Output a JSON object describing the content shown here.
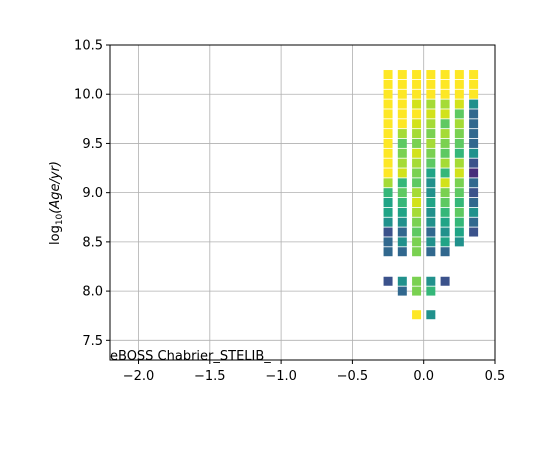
{
  "chart_data": {
    "type": "scatter",
    "title": "",
    "xlabel": "",
    "ylabel_prefix": "log",
    "ylabel_sub": "10",
    "ylabel_rest": "(Age/yr)",
    "xlim": [
      -2.2,
      0.5
    ],
    "ylim": [
      7.3,
      10.5
    ],
    "xticks": [
      -2.0,
      -1.5,
      -1.0,
      -0.5,
      0.0,
      0.5
    ],
    "xtick_labels": [
      "−2.0",
      "−1.5",
      "−1.0",
      "−0.5",
      "0.0",
      "0.5"
    ],
    "yticks": [
      7.5,
      8.0,
      8.5,
      9.0,
      9.5,
      10.0,
      10.5
    ],
    "ytick_labels": [
      "7.5",
      "8.0",
      "8.5",
      "9.0",
      "9.5",
      "10.0",
      "10.5"
    ],
    "grid": true,
    "annotation": "eBOSS Chabrier_STELIB_",
    "palette": {
      "c0": "#3b528b",
      "c1": "#31688e",
      "c2": "#21918c",
      "c3": "#20a486",
      "c4": "#35b779",
      "c5": "#5ec962",
      "c6": "#7ad151",
      "c7": "#a5db36",
      "c8": "#d2e21b",
      "c9": "#fde725",
      "dark": "#472c7a"
    },
    "columns": [
      {
        "x": -0.25,
        "cells": [
          {
            "y": 10.2,
            "c": "c9"
          },
          {
            "y": 10.1,
            "c": "c9"
          },
          {
            "y": 10.0,
            "c": "c9"
          },
          {
            "y": 9.9,
            "c": "c9"
          },
          {
            "y": 9.8,
            "c": "c9"
          },
          {
            "y": 9.7,
            "c": "c9"
          },
          {
            "y": 9.6,
            "c": "c9"
          },
          {
            "y": 9.5,
            "c": "c9"
          },
          {
            "y": 9.4,
            "c": "c9"
          },
          {
            "y": 9.3,
            "c": "c9"
          },
          {
            "y": 9.2,
            "c": "c9"
          },
          {
            "y": 9.1,
            "c": "c7"
          },
          {
            "y": 9.0,
            "c": "c4"
          },
          {
            "y": 8.9,
            "c": "c3"
          },
          {
            "y": 8.8,
            "c": "c3"
          },
          {
            "y": 8.7,
            "c": "c2"
          },
          {
            "y": 8.6,
            "c": "c0"
          },
          {
            "y": 8.5,
            "c": "c1"
          },
          {
            "y": 8.4,
            "c": "c1"
          },
          {
            "y": 8.1,
            "c": "c0"
          }
        ]
      },
      {
        "x": -0.15,
        "cells": [
          {
            "y": 10.2,
            "c": "c9"
          },
          {
            "y": 10.1,
            "c": "c9"
          },
          {
            "y": 10.0,
            "c": "c9"
          },
          {
            "y": 9.9,
            "c": "c9"
          },
          {
            "y": 9.8,
            "c": "c9"
          },
          {
            "y": 9.7,
            "c": "c9"
          },
          {
            "y": 9.6,
            "c": "c7"
          },
          {
            "y": 9.5,
            "c": "c5"
          },
          {
            "y": 9.4,
            "c": "c6"
          },
          {
            "y": 9.3,
            "c": "c7"
          },
          {
            "y": 9.2,
            "c": "c8"
          },
          {
            "y": 9.1,
            "c": "c4"
          },
          {
            "y": 9.0,
            "c": "c5"
          },
          {
            "y": 8.9,
            "c": "c4"
          },
          {
            "y": 8.8,
            "c": "c3"
          },
          {
            "y": 8.7,
            "c": "c2"
          },
          {
            "y": 8.6,
            "c": "c1"
          },
          {
            "y": 8.5,
            "c": "c2"
          },
          {
            "y": 8.4,
            "c": "c1"
          },
          {
            "y": 8.1,
            "c": "c2"
          },
          {
            "y": 8.0,
            "c": "c1"
          }
        ]
      },
      {
        "x": -0.05,
        "cells": [
          {
            "y": 10.2,
            "c": "c9"
          },
          {
            "y": 10.1,
            "c": "c9"
          },
          {
            "y": 10.0,
            "c": "c9"
          },
          {
            "y": 9.9,
            "c": "c8"
          },
          {
            "y": 9.8,
            "c": "c9"
          },
          {
            "y": 9.7,
            "c": "c8"
          },
          {
            "y": 9.6,
            "c": "c7"
          },
          {
            "y": 9.5,
            "c": "c6"
          },
          {
            "y": 9.4,
            "c": "c8"
          },
          {
            "y": 9.3,
            "c": "c7"
          },
          {
            "y": 9.2,
            "c": "c6"
          },
          {
            "y": 9.1,
            "c": "c5"
          },
          {
            "y": 9.0,
            "c": "c7"
          },
          {
            "y": 8.9,
            "c": "c8"
          },
          {
            "y": 8.8,
            "c": "c7"
          },
          {
            "y": 8.7,
            "c": "c6"
          },
          {
            "y": 8.6,
            "c": "c5"
          },
          {
            "y": 8.5,
            "c": "c6"
          },
          {
            "y": 8.4,
            "c": "c6"
          },
          {
            "y": 8.1,
            "c": "c6"
          },
          {
            "y": 8.0,
            "c": "c6"
          },
          {
            "y": 7.76,
            "c": "c9"
          }
        ]
      },
      {
        "x": 0.05,
        "cells": [
          {
            "y": 10.2,
            "c": "c9"
          },
          {
            "y": 10.1,
            "c": "c9"
          },
          {
            "y": 10.0,
            "c": "c9"
          },
          {
            "y": 9.9,
            "c": "c7"
          },
          {
            "y": 9.8,
            "c": "c8"
          },
          {
            "y": 9.7,
            "c": "c7"
          },
          {
            "y": 9.6,
            "c": "c6"
          },
          {
            "y": 9.5,
            "c": "c7"
          },
          {
            "y": 9.4,
            "c": "c6"
          },
          {
            "y": 9.3,
            "c": "c5"
          },
          {
            "y": 9.2,
            "c": "c3"
          },
          {
            "y": 9.1,
            "c": "c2"
          },
          {
            "y": 9.0,
            "c": "c2"
          },
          {
            "y": 8.9,
            "c": "c3"
          },
          {
            "y": 8.8,
            "c": "c2"
          },
          {
            "y": 8.7,
            "c": "c2"
          },
          {
            "y": 8.6,
            "c": "c1"
          },
          {
            "y": 8.5,
            "c": "c2"
          },
          {
            "y": 8.4,
            "c": "c1"
          },
          {
            "y": 8.1,
            "c": "c2"
          },
          {
            "y": 8.0,
            "c": "c4"
          },
          {
            "y": 7.76,
            "c": "c2"
          }
        ]
      },
      {
        "x": 0.15,
        "cells": [
          {
            "y": 10.2,
            "c": "c9"
          },
          {
            "y": 10.1,
            "c": "c9"
          },
          {
            "y": 10.0,
            "c": "c9"
          },
          {
            "y": 9.9,
            "c": "c7"
          },
          {
            "y": 9.8,
            "c": "c8"
          },
          {
            "y": 9.7,
            "c": "c5"
          },
          {
            "y": 9.6,
            "c": "c7"
          },
          {
            "y": 9.5,
            "c": "c6"
          },
          {
            "y": 9.4,
            "c": "c5"
          },
          {
            "y": 9.3,
            "c": "c7"
          },
          {
            "y": 9.2,
            "c": "c4"
          },
          {
            "y": 9.1,
            "c": "c8"
          },
          {
            "y": 9.0,
            "c": "c6"
          },
          {
            "y": 8.9,
            "c": "c5"
          },
          {
            "y": 8.8,
            "c": "c4"
          },
          {
            "y": 8.7,
            "c": "c3"
          },
          {
            "y": 8.6,
            "c": "c2"
          },
          {
            "y": 8.5,
            "c": "c3"
          },
          {
            "y": 8.4,
            "c": "c1"
          },
          {
            "y": 8.1,
            "c": "c0"
          }
        ]
      },
      {
        "x": 0.25,
        "cells": [
          {
            "y": 10.2,
            "c": "c9"
          },
          {
            "y": 10.1,
            "c": "c9"
          },
          {
            "y": 10.0,
            "c": "c9"
          },
          {
            "y": 9.9,
            "c": "c8"
          },
          {
            "y": 9.8,
            "c": "c5"
          },
          {
            "y": 9.7,
            "c": "c7"
          },
          {
            "y": 9.6,
            "c": "c6"
          },
          {
            "y": 9.5,
            "c": "c5"
          },
          {
            "y": 9.4,
            "c": "c4"
          },
          {
            "y": 9.3,
            "c": "c7"
          },
          {
            "y": 9.2,
            "c": "c8"
          },
          {
            "y": 9.1,
            "c": "c6"
          },
          {
            "y": 9.0,
            "c": "c5"
          },
          {
            "y": 8.9,
            "c": "c4"
          },
          {
            "y": 8.8,
            "c": "c5"
          },
          {
            "y": 8.7,
            "c": "c4"
          },
          {
            "y": 8.6,
            "c": "c3"
          },
          {
            "y": 8.5,
            "c": "c2"
          }
        ]
      },
      {
        "x": 0.35,
        "cells": [
          {
            "y": 10.2,
            "c": "c9"
          },
          {
            "y": 10.1,
            "c": "c9"
          },
          {
            "y": 10.0,
            "c": "c9"
          },
          {
            "y": 9.9,
            "c": "c2"
          },
          {
            "y": 9.8,
            "c": "c1"
          },
          {
            "y": 9.7,
            "c": "c1"
          },
          {
            "y": 9.6,
            "c": "c1"
          },
          {
            "y": 9.5,
            "c": "c1"
          },
          {
            "y": 9.4,
            "c": "c2"
          },
          {
            "y": 9.3,
            "c": "c0"
          },
          {
            "y": 9.2,
            "c": "dark"
          },
          {
            "y": 9.1,
            "c": "c1"
          },
          {
            "y": 9.0,
            "c": "c0"
          },
          {
            "y": 8.9,
            "c": "c1"
          },
          {
            "y": 8.8,
            "c": "c2"
          },
          {
            "y": 8.7,
            "c": "c1"
          },
          {
            "y": 8.6,
            "c": "c0"
          }
        ]
      }
    ]
  }
}
